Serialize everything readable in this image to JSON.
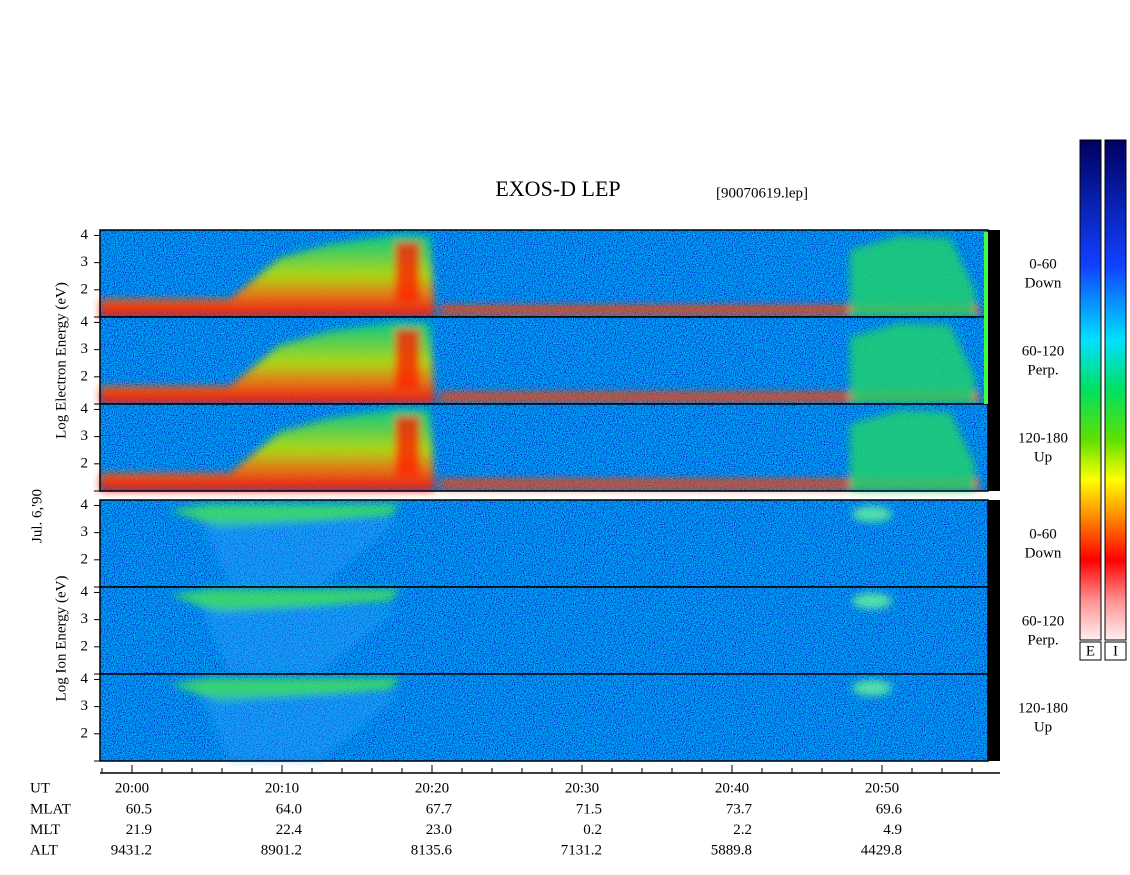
{
  "header": {
    "title": "EXOS-D LEP",
    "file": "[90070619.lep]"
  },
  "date": "Jul. 6,'90",
  "groups": [
    {
      "axis_label": "Log Electron Energy (eV)",
      "panels": [
        {
          "angle": "0-60",
          "direction": "Down"
        },
        {
          "angle": "60-120",
          "direction": "Perp."
        },
        {
          "angle": "120-180",
          "direction": "Up"
        }
      ]
    },
    {
      "axis_label": "Log Ion Energy (eV)",
      "panels": [
        {
          "angle": "0-60",
          "direction": "Down"
        },
        {
          "angle": "60-120",
          "direction": "Perp."
        },
        {
          "angle": "120-180",
          "direction": "Up"
        }
      ]
    }
  ],
  "energy_axis": {
    "ylim": [
      1,
      4.2
    ],
    "yticks": [
      2,
      3,
      4
    ]
  },
  "time_axis": {
    "label": "UT",
    "ticks": [
      "20:00",
      "20:10",
      "20:20",
      "20:30",
      "20:40",
      "20:50"
    ]
  },
  "orbit": [
    {
      "label": "MLAT",
      "values": [
        "60.5",
        "64.0",
        "67.7",
        "71.5",
        "73.7",
        "69.6"
      ]
    },
    {
      "label": "MLT",
      "values": [
        "21.9",
        "22.4",
        "23.0",
        "0.2",
        "2.2",
        "4.9"
      ]
    },
    {
      "label": "ALT",
      "values": [
        "9431.2",
        "8901.2",
        "8135.6",
        "7131.2",
        "5889.8",
        "4429.8"
      ]
    }
  ],
  "colorbars": [
    "E",
    "I"
  ]
}
